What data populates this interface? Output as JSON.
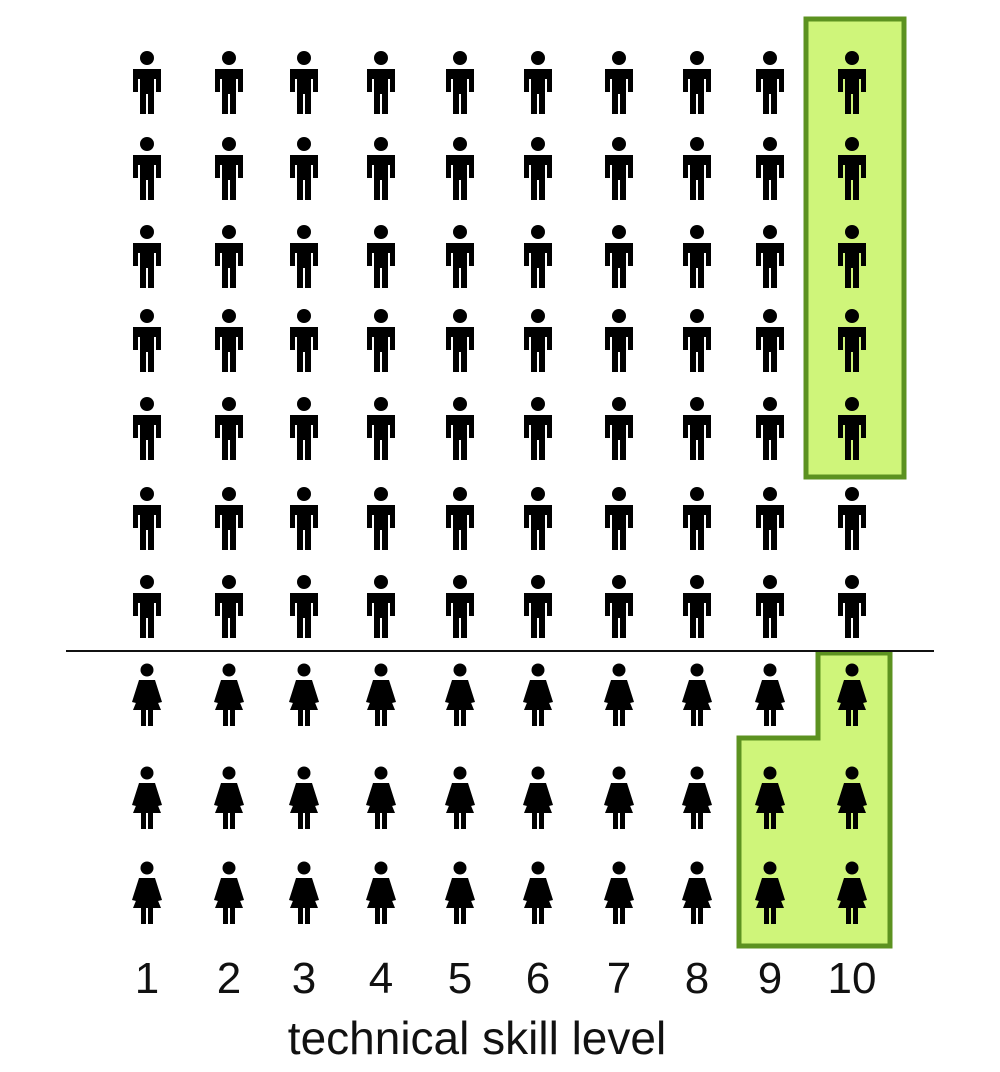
{
  "axis": {
    "title": "technical skill level",
    "tick_labels": [
      "1",
      "2",
      "3",
      "4",
      "5",
      "6",
      "7",
      "8",
      "9",
      "10"
    ]
  },
  "groups": {
    "men": {
      "icon": "man-icon",
      "rows": 7,
      "columns": 10
    },
    "women": {
      "icon": "woman-icon",
      "rows": 3,
      "columns": 10
    }
  },
  "highlights": [
    {
      "group": "men",
      "description_id": "men-highlight",
      "covers": [
        {
          "level": 10,
          "count": 5
        }
      ]
    },
    {
      "group": "women",
      "description_id": "women-highlight",
      "covers": [
        {
          "level": 9,
          "count": 2
        },
        {
          "level": 10,
          "count": 3
        }
      ]
    }
  ],
  "colors": {
    "icon": "#000000",
    "highlight_fill": "#cff57a",
    "highlight_stroke": "#5c9220",
    "divider": "#111111"
  }
}
